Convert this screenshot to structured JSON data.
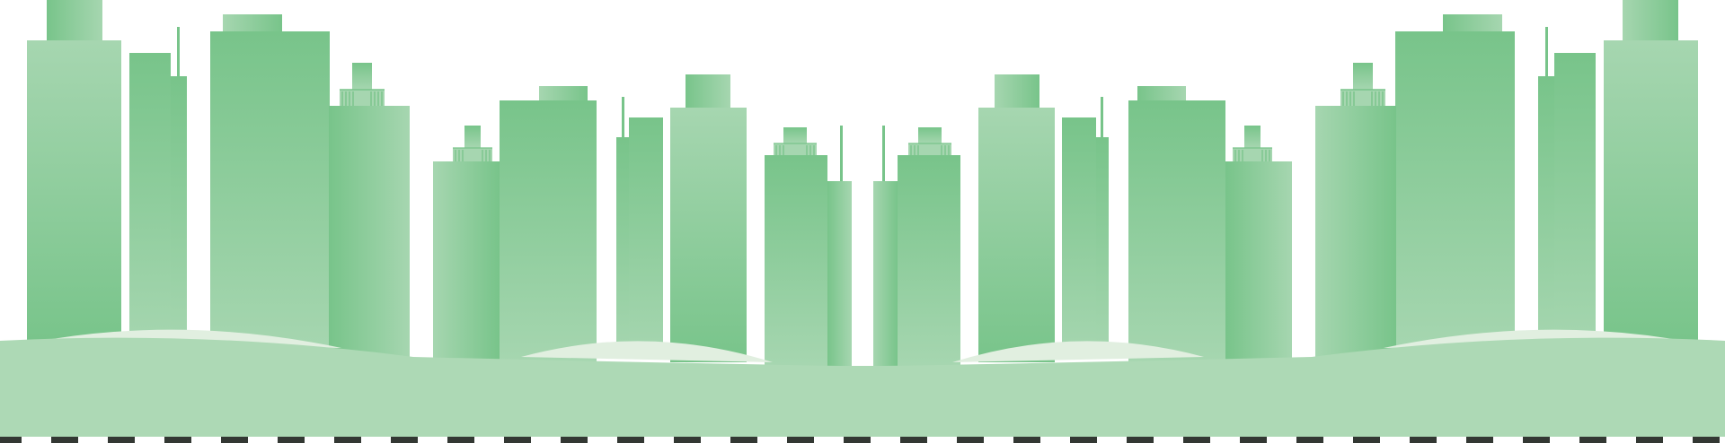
{
  "scene": {
    "description_text": "",
    "colors": {
      "building_light": "#a6d6b0",
      "building_mid": "#93cf9f",
      "building_dark": "#78c48a",
      "ground": "#add9b5",
      "hill": "#e1efe0",
      "road_dash": "#333833",
      "background": "#ffffff"
    },
    "icons": [
      "city-skyline-illustration"
    ]
  }
}
